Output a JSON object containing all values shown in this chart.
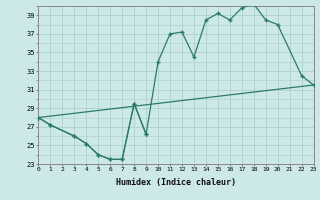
{
  "xlabel": "Humidex (Indice chaleur)",
  "bg_color": "#cce8e8",
  "grid_color": "#aacccc",
  "line_color": "#2d7a6a",
  "xlim": [
    0,
    23
  ],
  "ylim": [
    23,
    40
  ],
  "yticks": [
    23,
    25,
    27,
    29,
    31,
    33,
    35,
    37,
    39
  ],
  "xticks": [
    0,
    1,
    2,
    3,
    4,
    5,
    6,
    7,
    8,
    9,
    10,
    11,
    12,
    13,
    14,
    15,
    16,
    17,
    18,
    19,
    20,
    21,
    22,
    23
  ],
  "series_straight": {
    "x": [
      0,
      23
    ],
    "y": [
      28.0,
      31.5
    ]
  },
  "series_dip": {
    "x": [
      0,
      1,
      3,
      4,
      5,
      6,
      7,
      8,
      9
    ],
    "y": [
      28.0,
      27.2,
      26.0,
      25.2,
      24.0,
      23.5,
      23.5,
      29.5,
      26.2
    ]
  },
  "series_main": {
    "x": [
      0,
      1,
      3,
      4,
      5,
      6,
      7,
      8,
      9,
      10,
      11,
      12,
      13,
      14,
      15,
      16,
      17,
      18,
      19,
      20,
      22,
      23
    ],
    "y": [
      28.0,
      27.2,
      26.0,
      25.2,
      24.0,
      23.5,
      23.5,
      29.5,
      26.2,
      34.0,
      37.0,
      37.2,
      34.5,
      38.5,
      39.2,
      38.5,
      39.8,
      40.2,
      38.5,
      38.0,
      32.5,
      31.5
    ]
  }
}
